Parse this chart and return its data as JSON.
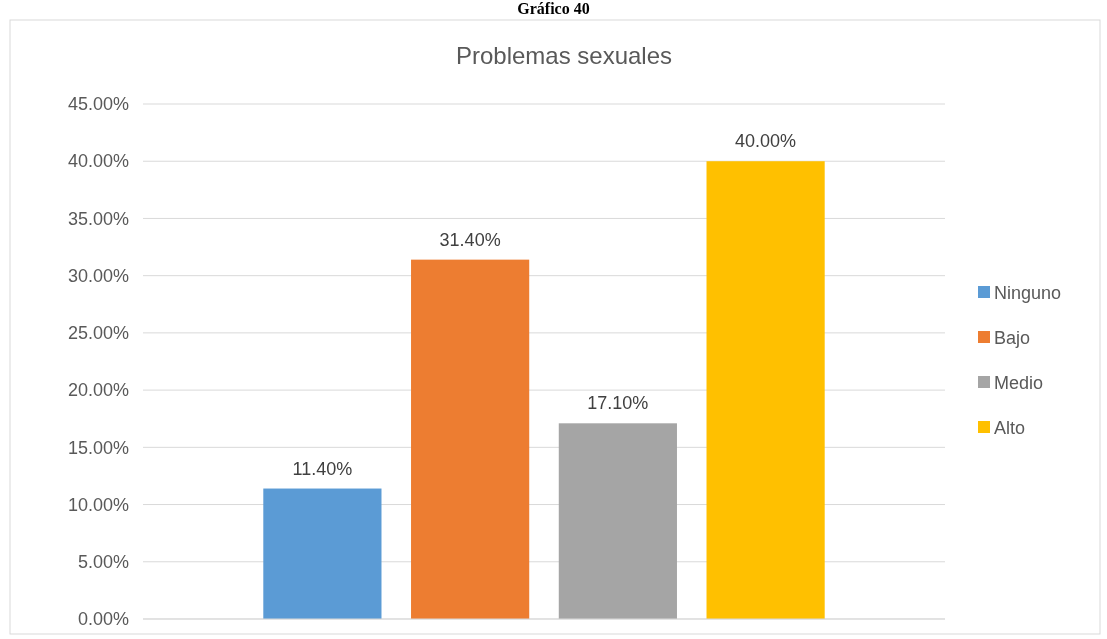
{
  "chart_data": {
    "type": "bar",
    "title": "Problemas sexuales",
    "annotations": [
      "Gráfico 40"
    ],
    "categories": [
      null
    ],
    "series": [
      {
        "name": "Ninguno",
        "color": "#5b9bd5",
        "values": [
          11.4
        ],
        "value_labels": [
          "11.40%"
        ]
      },
      {
        "name": "Bajo",
        "color": "#ed7d31",
        "values": [
          31.4
        ],
        "value_labels": [
          "31.40%"
        ]
      },
      {
        "name": "Medio",
        "color": "#a5a5a5",
        "values": [
          17.1
        ],
        "value_labels": [
          "17.10%"
        ]
      },
      {
        "name": "Alto",
        "color": "#ffc000",
        "values": [
          40
        ],
        "value_labels": [
          "40.00%"
        ]
      }
    ],
    "ylim": [
      0,
      45
    ],
    "yticks": [
      {
        "value": 0,
        "label": "0.00%"
      },
      {
        "value": 5,
        "label": "5.00%"
      },
      {
        "value": 10,
        "label": "10.00%"
      },
      {
        "value": 15,
        "label": "15.00%"
      },
      {
        "value": 20,
        "label": "20.00%"
      },
      {
        "value": 25,
        "label": "25.00%"
      },
      {
        "value": 30,
        "label": "30.00%"
      },
      {
        "value": 35,
        "label": "35.00%"
      },
      {
        "value": 40,
        "label": "40.00%"
      },
      {
        "value": 45,
        "label": "45.00%"
      }
    ],
    "grid": "y",
    "legend": "right"
  }
}
